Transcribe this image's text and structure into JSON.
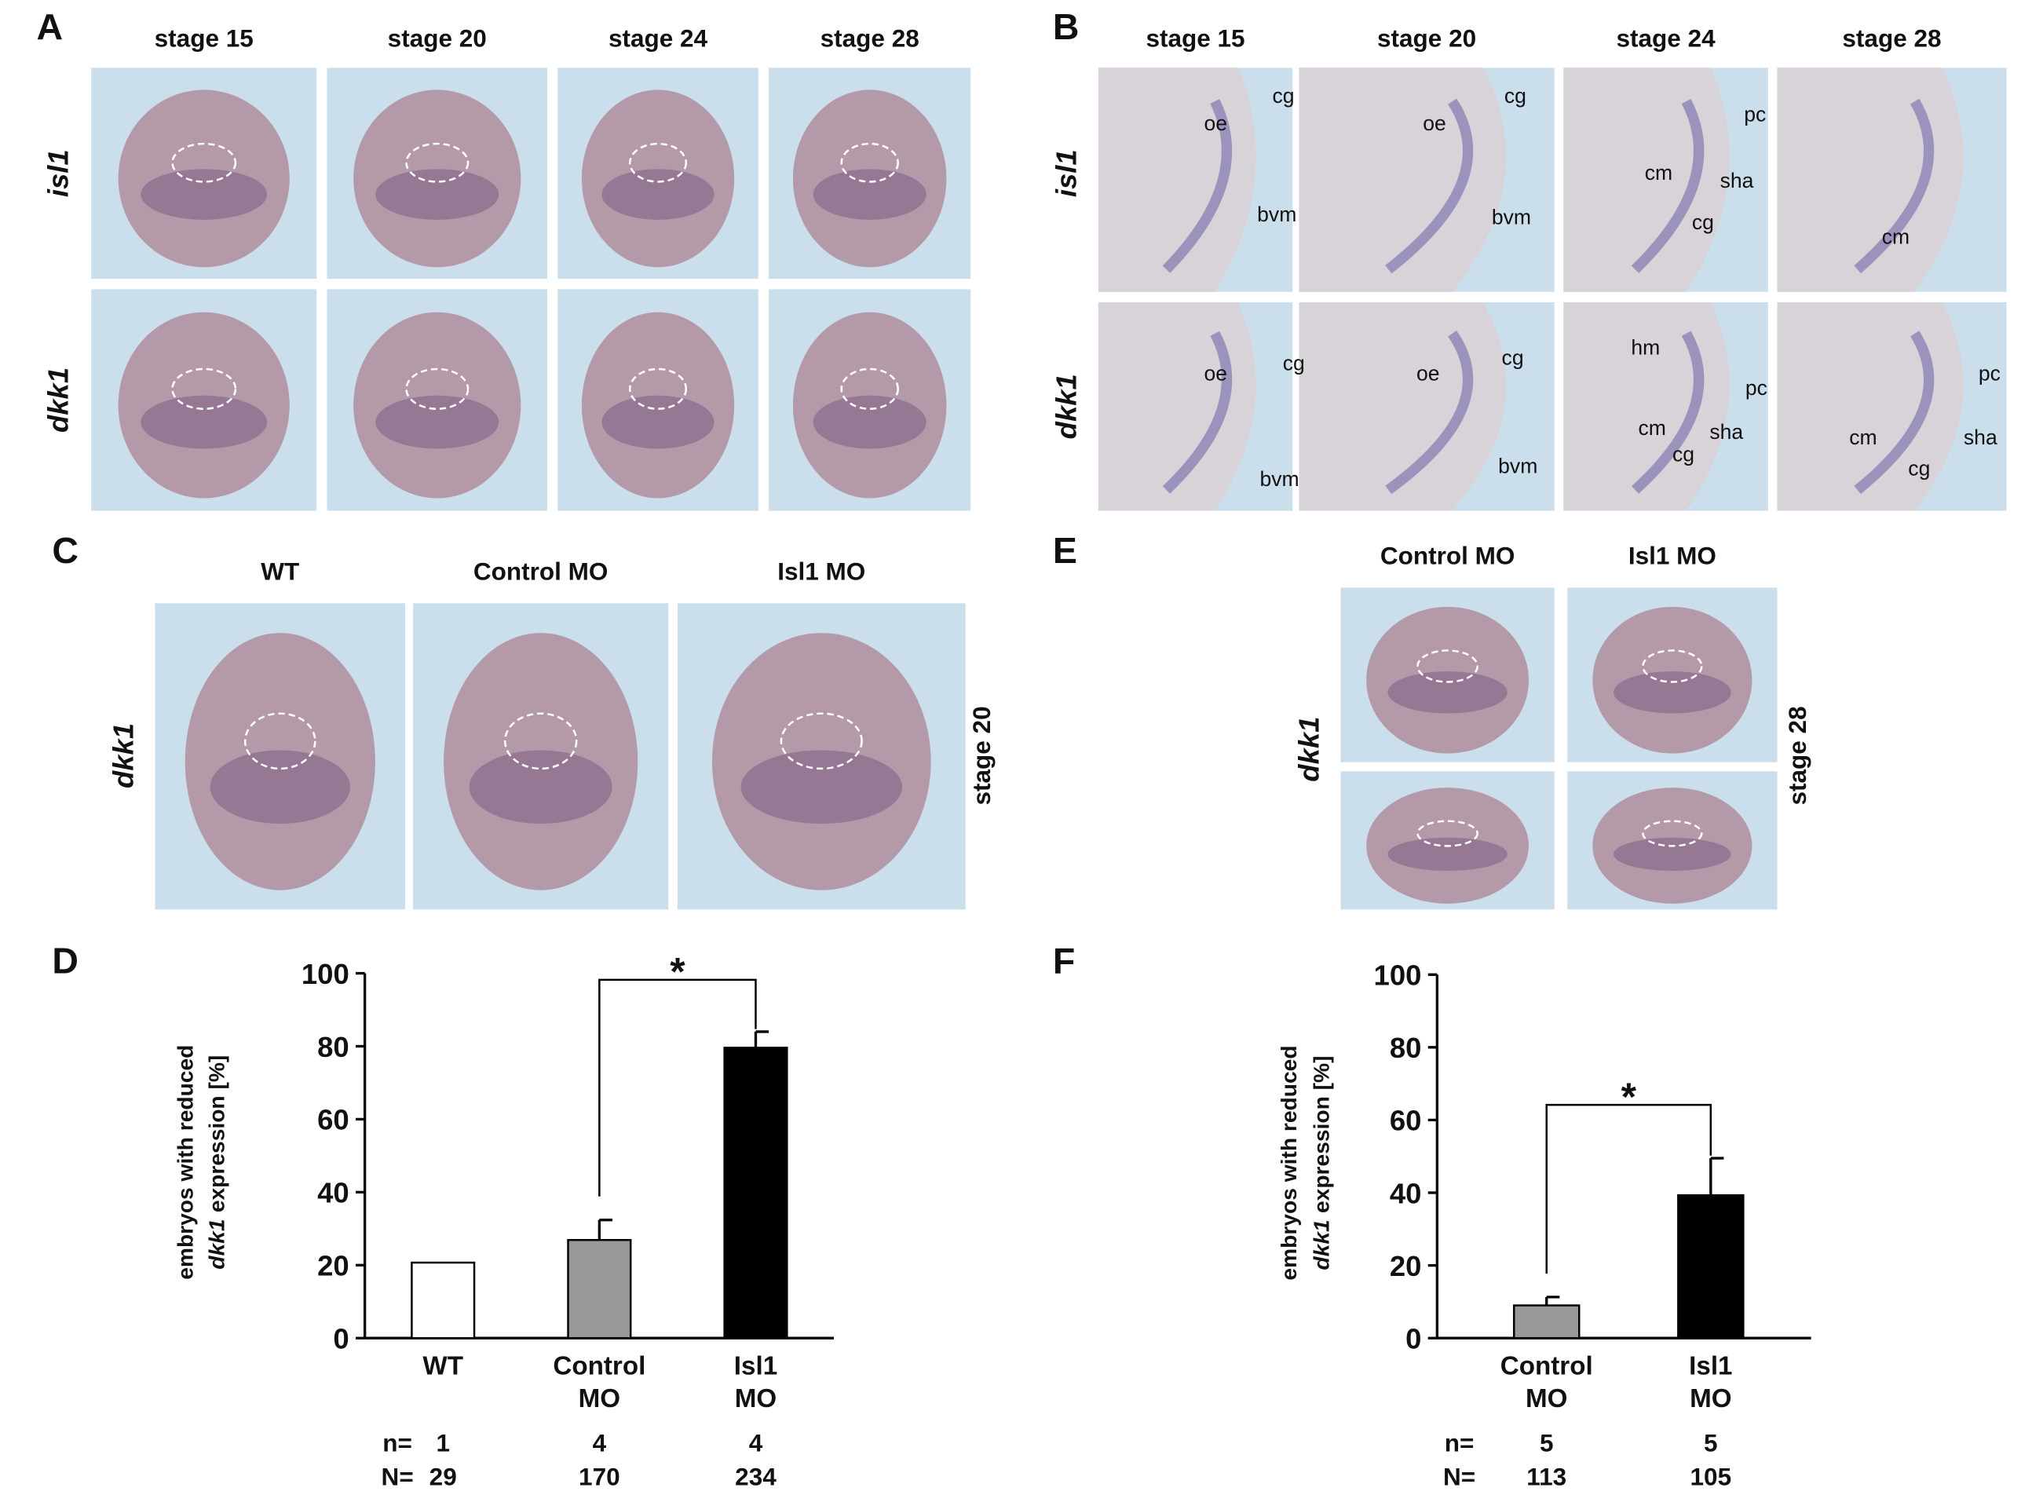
{
  "panels": [
    {
      "label": "A",
      "columns": [
        "stage 15",
        "stage 20",
        "stage 24",
        "stage 28"
      ],
      "rows": [
        "isl1",
        "dkk1"
      ]
    },
    {
      "label": "B",
      "columns": [
        "stage 15",
        "stage 20",
        "stage 24",
        "stage 28"
      ],
      "rows": [
        "isl1",
        "dkk1"
      ],
      "annotations": [
        "cg",
        "oe",
        "bvm",
        "cg",
        "oe",
        "bvm",
        "pc",
        "cm",
        "sha",
        "cg",
        "cm",
        "oe",
        "cg",
        "bvm",
        "oe",
        "cg",
        "bvm",
        "hm",
        "pc",
        "cm",
        "sha",
        "cg",
        "pc",
        "sha",
        "cm",
        "cg"
      ]
    },
    {
      "label": "C",
      "columns": [
        "WT",
        "Control MO",
        "Isl1 MO"
      ],
      "rows": [
        "dkk1"
      ],
      "side": "stage 20"
    },
    {
      "label": "E",
      "columns": [
        "Control MO",
        "Isl1 MO"
      ],
      "rows": [
        "dkk1"
      ],
      "side": "stage 28"
    }
  ],
  "chart_data": [
    {
      "type": "bar",
      "label": "D",
      "ylabel_line1": "embryos with reduced",
      "ylabel_gene": "dkk1",
      "ylabel_rest": "expression [%]",
      "categories": [
        [
          "WT"
        ],
        [
          "Control",
          "MO"
        ],
        [
          "Isl1",
          "MO"
        ]
      ],
      "values": [
        20.7,
        26.9,
        79.6
      ],
      "errors": [
        null,
        5.5,
        4.4
      ],
      "colors": [
        "#ffffff",
        "#999999",
        "#000000"
      ],
      "ylim": [
        0,
        100
      ],
      "yticks": [
        0,
        20,
        40,
        60,
        80,
        100
      ],
      "n_label": "n=",
      "n": [
        1,
        4,
        4
      ],
      "N_label": "N=",
      "N": [
        29,
        170,
        234
      ],
      "significance": {
        "label": "*",
        "from": 1,
        "to": 2
      }
    },
    {
      "type": "bar",
      "label": "F",
      "ylabel_line1": "embryos with reduced",
      "ylabel_gene": "dkk1",
      "ylabel_rest": "expression [%]",
      "categories": [
        [
          "Control",
          "MO"
        ],
        [
          "Isl1",
          "MO"
        ]
      ],
      "values": [
        9,
        39.3
      ],
      "errors": [
        2.3,
        10.2
      ],
      "colors": [
        "#999999",
        "#000000"
      ],
      "ylim": [
        0,
        100
      ],
      "yticks": [
        0,
        20,
        40,
        60,
        80,
        100
      ],
      "n_label": "n=",
      "n": [
        5,
        5
      ],
      "N_label": "N=",
      "N": [
        113,
        105
      ],
      "significance": {
        "label": "*",
        "from": 0,
        "to": 1
      }
    }
  ]
}
